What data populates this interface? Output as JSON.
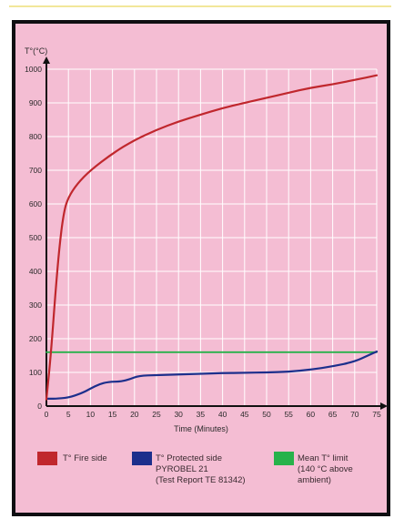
{
  "chart_data": {
    "type": "line",
    "ylabel": "T°(°C)",
    "xlabel": "Time (Minutes)",
    "xlim": [
      0,
      75
    ],
    "ylim": [
      0,
      1000
    ],
    "x_ticks": [
      0,
      5,
      10,
      15,
      20,
      25,
      30,
      35,
      40,
      45,
      50,
      55,
      60,
      65,
      70,
      75
    ],
    "y_ticks": [
      0,
      100,
      200,
      300,
      400,
      500,
      600,
      700,
      800,
      900,
      1000
    ],
    "grid": true,
    "series": [
      {
        "name": "T° Fire side",
        "color": "#c0272d",
        "points": [
          [
            0,
            20
          ],
          [
            1,
            150
          ],
          [
            2,
            330
          ],
          [
            3,
            480
          ],
          [
            4,
            580
          ],
          [
            5,
            620
          ],
          [
            7,
            660
          ],
          [
            10,
            700
          ],
          [
            15,
            750
          ],
          [
            20,
            790
          ],
          [
            25,
            820
          ],
          [
            30,
            845
          ],
          [
            35,
            865
          ],
          [
            40,
            885
          ],
          [
            45,
            900
          ],
          [
            50,
            915
          ],
          [
            55,
            930
          ],
          [
            60,
            945
          ],
          [
            65,
            955
          ],
          [
            70,
            968
          ],
          [
            75,
            982
          ]
        ]
      },
      {
        "name": "T° Protected side PYROBEL 21 (Test Report TE 81342)",
        "color": "#1c2f8c",
        "points": [
          [
            0,
            22
          ],
          [
            2,
            22
          ],
          [
            5,
            25
          ],
          [
            8,
            38
          ],
          [
            10,
            52
          ],
          [
            12,
            65
          ],
          [
            14,
            72
          ],
          [
            17,
            73
          ],
          [
            19,
            80
          ],
          [
            21,
            90
          ],
          [
            25,
            92
          ],
          [
            30,
            94
          ],
          [
            35,
            96
          ],
          [
            40,
            98
          ],
          [
            45,
            99
          ],
          [
            50,
            100
          ],
          [
            55,
            102
          ],
          [
            60,
            108
          ],
          [
            65,
            118
          ],
          [
            70,
            132
          ],
          [
            73,
            150
          ],
          [
            75,
            162
          ]
        ]
      },
      {
        "name": "Mean T° limit (140 °C above ambient)",
        "color": "#27b24a",
        "points": [
          [
            0,
            160
          ],
          [
            75,
            160
          ]
        ]
      }
    ]
  },
  "legend": [
    {
      "lines": [
        "T° Fire side"
      ],
      "color": "#c0272d"
    },
    {
      "lines": [
        "T° Protected side",
        "PYROBEL 21",
        "(Test Report TE 81342)"
      ],
      "color": "#1c2f8c"
    },
    {
      "lines": [
        "Mean T° limit",
        "(140 °C above",
        "ambient)"
      ],
      "color": "#27b24a"
    }
  ]
}
